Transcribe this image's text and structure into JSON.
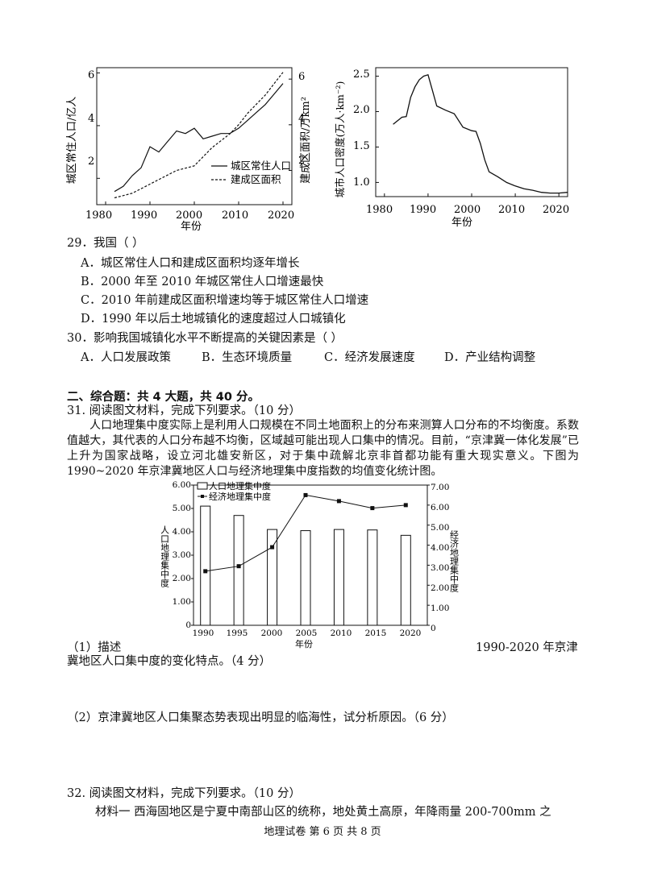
{
  "chart_data": [
    {
      "type": "line",
      "x": [
        1982,
        1984,
        1986,
        1988,
        1990,
        1992,
        1994,
        1996,
        1998,
        2000,
        2002,
        2004,
        2006,
        2008,
        2010,
        2012,
        2014,
        2016,
        2018,
        2020
      ],
      "series": [
        {
          "name": "城区常住人口",
          "axis": "left",
          "style": "solid",
          "values": [
            1.5,
            1.7,
            2.1,
            2.4,
            3.2,
            3.0,
            3.4,
            3.8,
            3.7,
            3.9,
            3.5,
            3.6,
            3.7,
            3.7,
            3.9,
            4.2,
            4.5,
            4.8,
            5.2,
            5.6
          ]
        },
        {
          "name": "建成区面积",
          "axis": "right",
          "style": "dashed",
          "values": [
            0.8,
            0.9,
            1.0,
            1.2,
            1.4,
            1.6,
            1.8,
            2.0,
            2.1,
            2.2,
            2.6,
            3.0,
            3.3,
            3.6,
            4.0,
            4.5,
            4.9,
            5.3,
            5.8,
            6.3
          ]
        }
      ],
      "xlabel": "年份",
      "ylabel_left": "城区常住人口/亿人",
      "ylabel_right": "建成区面积/万km²",
      "xticks": [
        "1980",
        "1990",
        "2000",
        "2010",
        "2020"
      ],
      "yticks_left": [
        "2",
        "4",
        "6"
      ],
      "yticks_right": [
        "2",
        "4",
        "6"
      ],
      "ylim_left": [
        1,
        6.2
      ],
      "ylim_right": [
        0.5,
        6.5
      ],
      "xlim": [
        1978,
        2022
      ],
      "legend_position": "bottom-right"
    },
    {
      "type": "line",
      "x": [
        1982,
        1984,
        1985,
        1986,
        1987,
        1988,
        1989,
        1990,
        1991,
        1992,
        1994,
        1996,
        1998,
        2000,
        2001,
        2002,
        2003,
        2004,
        2006,
        2008,
        2010,
        2012,
        2014,
        2016,
        2018,
        2020,
        2022
      ],
      "values": [
        1.82,
        1.92,
        1.93,
        2.2,
        2.35,
        2.45,
        2.5,
        2.52,
        2.3,
        2.08,
        2.02,
        1.97,
        1.78,
        1.73,
        1.72,
        1.55,
        1.32,
        1.15,
        1.08,
        1.0,
        0.95,
        0.91,
        0.89,
        0.86,
        0.85,
        0.85,
        0.86
      ],
      "xlabel": "年份",
      "ylabel": "城市人口密度(万人·km⁻²)",
      "xticks": [
        "1980",
        "1990",
        "2000",
        "2010",
        "2020"
      ],
      "yticks": [
        "1.0",
        "1.5",
        "2.0",
        "2.5"
      ],
      "ylim": [
        0.8,
        2.62
      ],
      "xlim": [
        1978,
        2022
      ]
    },
    {
      "type": "bar",
      "categories": [
        "1990",
        "1995",
        "2000",
        "2005",
        "2010",
        "2015",
        "2020"
      ],
      "series": [
        {
          "name": "人口地理集中度",
          "type": "bar",
          "axis": "left",
          "values": [
            5.1,
            4.7,
            4.1,
            4.05,
            4.1,
            4.08,
            3.85
          ]
        },
        {
          "name": "经济地理集中度",
          "type": "line",
          "axis": "right",
          "values": [
            2.7,
            2.95,
            3.9,
            6.5,
            6.2,
            5.85,
            6.0
          ]
        }
      ],
      "xlabel": "年份",
      "ylabel_left": "人口地理集中度",
      "ylabel_right": "经济地理集中度",
      "yticks_left": [
        "0",
        "1.00",
        "2.00",
        "3.00",
        "4.00",
        "5.00",
        "6.00"
      ],
      "yticks_right": [
        "0",
        "1.00",
        "2.00",
        "3.00",
        "4.00",
        "5.00",
        "6.00",
        "7.00"
      ],
      "ylim_left": [
        0,
        6
      ],
      "ylim_right": [
        0,
        7
      ],
      "legend_position": "top-left"
    }
  ],
  "q29": {
    "stem": "29．我国（      ）",
    "a": "A．城区常住人口和建成区面积均逐年增长",
    "b": "B．2000 年至 2010 年城区常住人口增速最快",
    "c": "C．2010 年前建成区面积增速均等于城区常住人口增速",
    "d": "D．1990 年以后土地城镇化的速度超过人口城镇化"
  },
  "q30": {
    "stem": "30．影响我国城镇化水平不断提高的关键因素是（      ）",
    "a": "A．人口发展政策",
    "b": "B．生态环境质量",
    "c": "C．经济发展速度",
    "d": "D．产业结构调整"
  },
  "section2": "二、综合题：共 4 大题，共 40 分。",
  "q31": {
    "stem": "31. 阅读图文材料，完成下列要求。（10 分）",
    "para1": "人口地理集中度实际上是利用人口规模在不同土地面积上的分布来测算人口分布的不均衡度。系数值越大，其代表的人口分布越不均衡，区域越可能出现人口集中的情况。目前，“京津冀一体化发展”已上升为国家战略，设立河北雄安新区，对于集中疏解北京非首都功能有重大现实意义。下图为 1990~2020 年京津冀地区人口与经济地理集中度指数的均值变化统计图。",
    "sub1_left": "（1）描述",
    "sub1_right": "1990-2020 年京津",
    "sub1_cont": "冀地区人口集中度的变化特点。（4 分）",
    "sub2": "（2）京津冀地区人口集聚态势表现出明显的临海性，试分析原因。（6 分）"
  },
  "q32": {
    "stem": "32. 阅读图文材料，完成下列要求。（10 分）",
    "material1": "材料一   西海固地区是宁夏中南部山区的统称，地处黄土高原，年降雨量 200-700mm 之"
  },
  "footer": "地理试卷 第 6 页 共 8 页"
}
